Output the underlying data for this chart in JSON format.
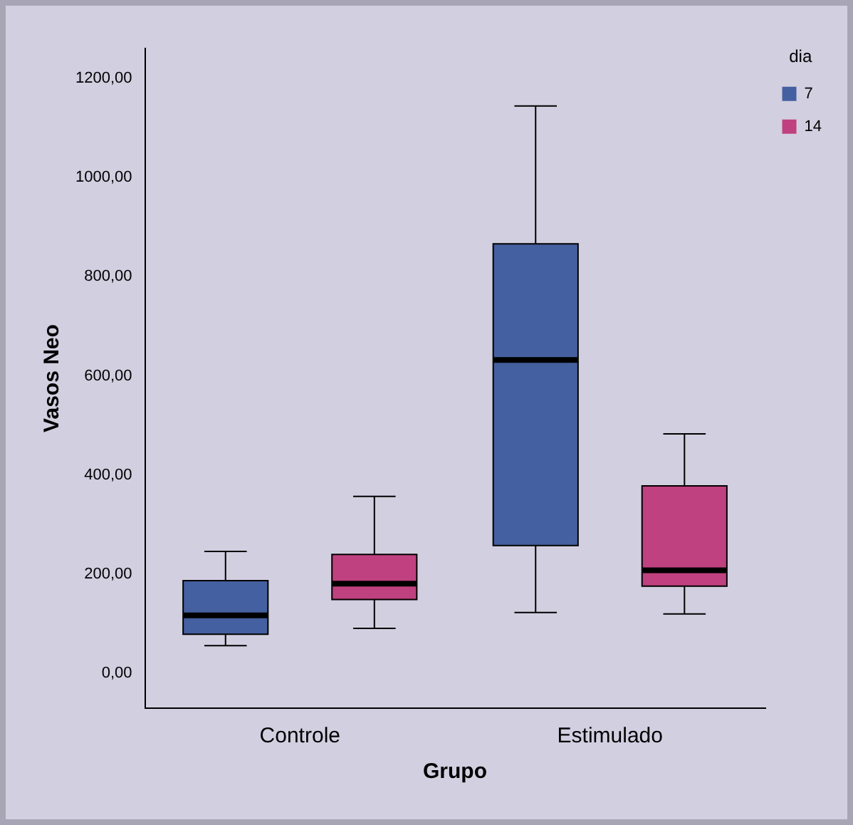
{
  "chart_data": {
    "type": "box",
    "xlabel": "Grupo",
    "ylabel": "Vasos Neo",
    "legend_title": "dia",
    "legend": "top right",
    "grid": false,
    "categories": [
      "Controle",
      "Estimulado"
    ],
    "ylim": [
      -70,
      1260
    ],
    "yticks": [
      {
        "value": 0,
        "label": "0,00"
      },
      {
        "value": 200,
        "label": "200,00"
      },
      {
        "value": 400,
        "label": "400,00"
      },
      {
        "value": 600,
        "label": "600,00"
      },
      {
        "value": 800,
        "label": "800,00"
      },
      {
        "value": 1000,
        "label": "1000,00"
      },
      {
        "value": 1200,
        "label": "1200,00"
      }
    ],
    "series": [
      {
        "name": "7",
        "color": "#4560a0",
        "boxes": [
          {
            "low": 56,
            "q1": 79,
            "median": 117,
            "q3": 187,
            "high": 246
          },
          {
            "low": 123,
            "q1": 258,
            "median": 632,
            "q3": 866,
            "high": 1144
          }
        ]
      },
      {
        "name": "14",
        "color": "#c0417f",
        "boxes": [
          {
            "low": 91,
            "q1": 149,
            "median": 181,
            "q3": 240,
            "high": 357
          },
          {
            "low": 120,
            "q1": 176,
            "median": 208,
            "q3": 378,
            "high": 483
          }
        ]
      }
    ]
  }
}
